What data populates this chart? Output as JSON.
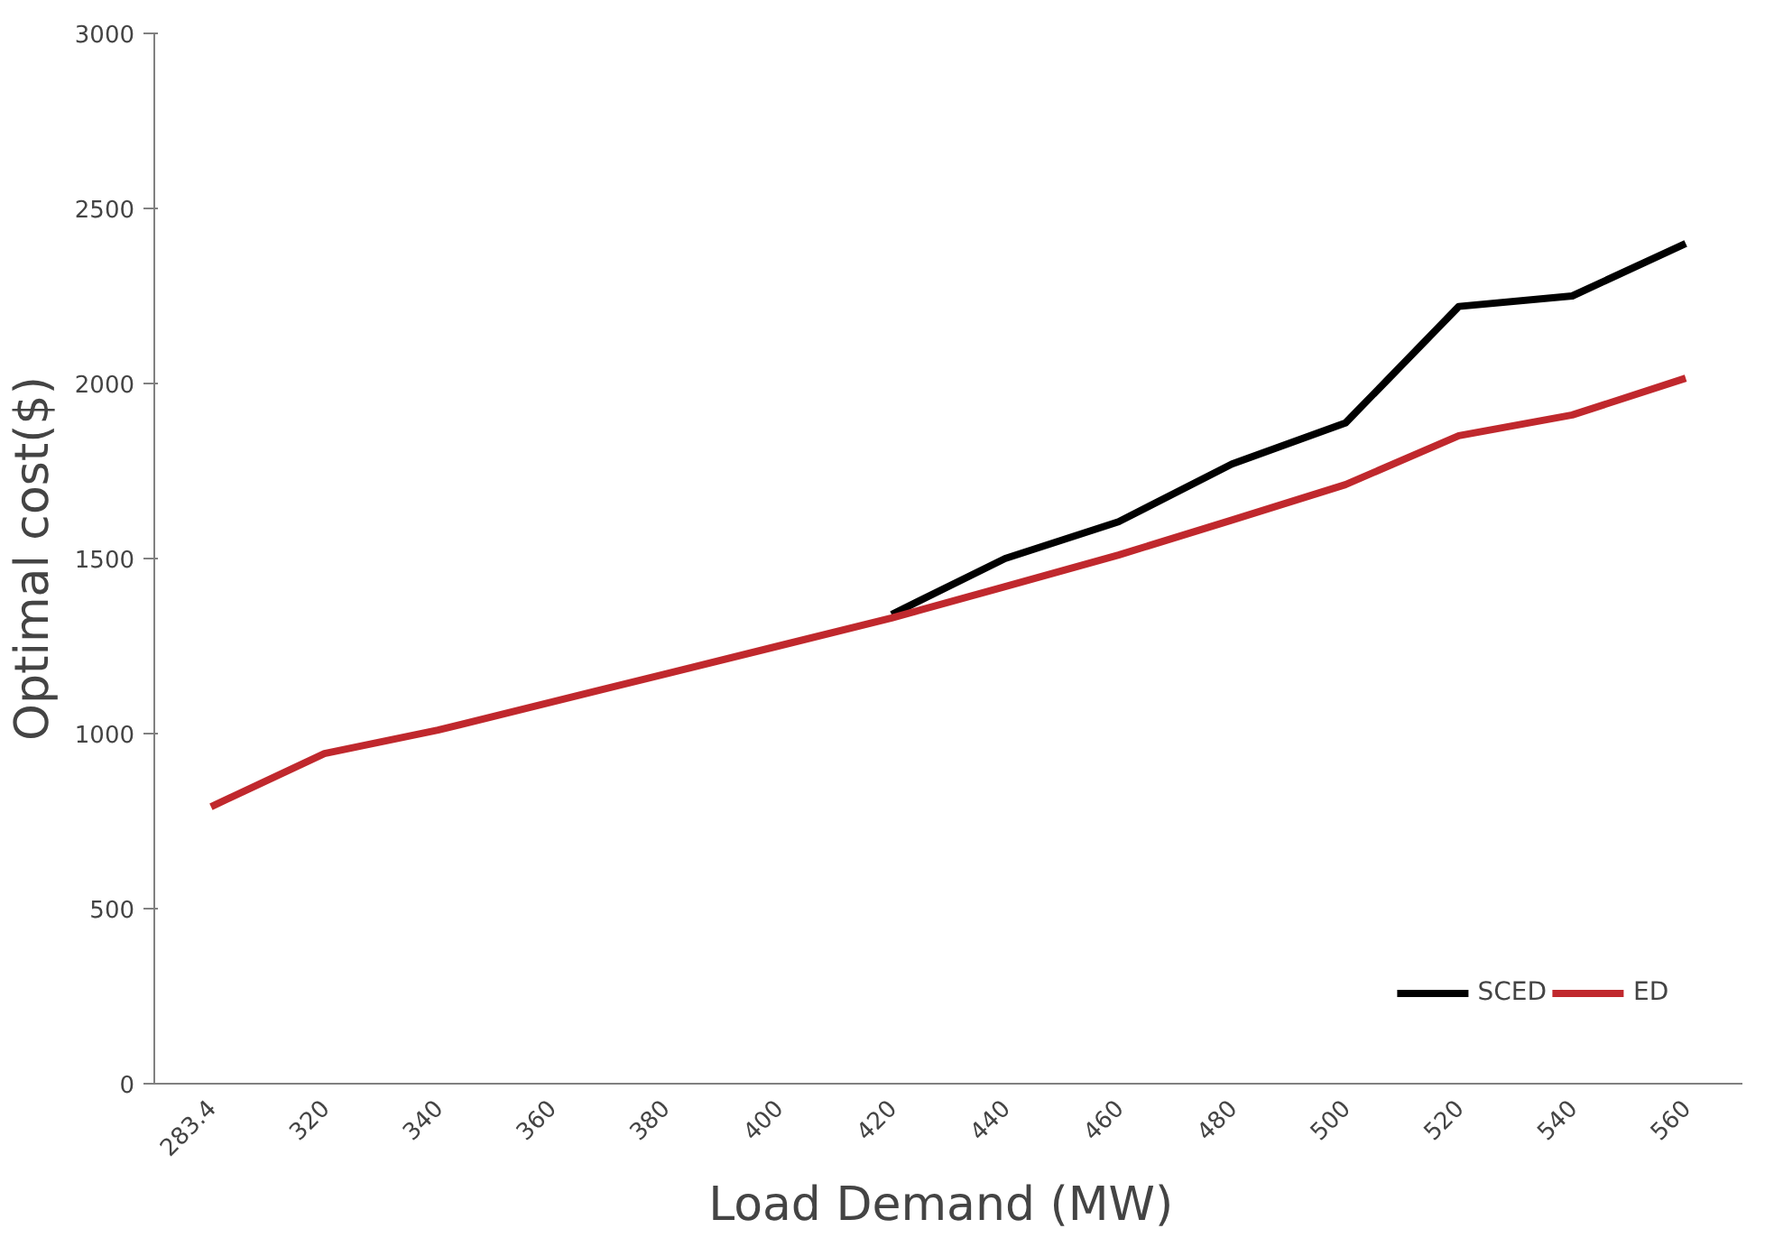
{
  "chart_data": {
    "type": "line",
    "xlabel": "Load Demand  (MW)",
    "ylabel": "Optimal cost($)",
    "categories": [
      "283.4",
      "320",
      "340",
      "360",
      "380",
      "400",
      "420",
      "440",
      "460",
      "480",
      "500",
      "520",
      "540",
      "560"
    ],
    "series": [
      {
        "name": "SCED",
        "color": "#000000",
        "values": [
          null,
          null,
          null,
          null,
          null,
          null,
          1340,
          1500,
          1605,
          1770,
          1887,
          2220,
          2250,
          2400
        ]
      },
      {
        "name": "ED",
        "color": "#c0282d",
        "values": [
          791,
          943,
          1010,
          1090,
          1170,
          1250,
          1330,
          1420,
          1510,
          1610,
          1711,
          1851,
          1910,
          2015
        ]
      }
    ],
    "ylim": [
      0,
      3000
    ],
    "yticks": [
      0,
      500,
      1000,
      1500,
      2000,
      2500,
      3000
    ],
    "grid": false,
    "legend": "bottom right",
    "line_style": "solid",
    "marker": "none"
  }
}
